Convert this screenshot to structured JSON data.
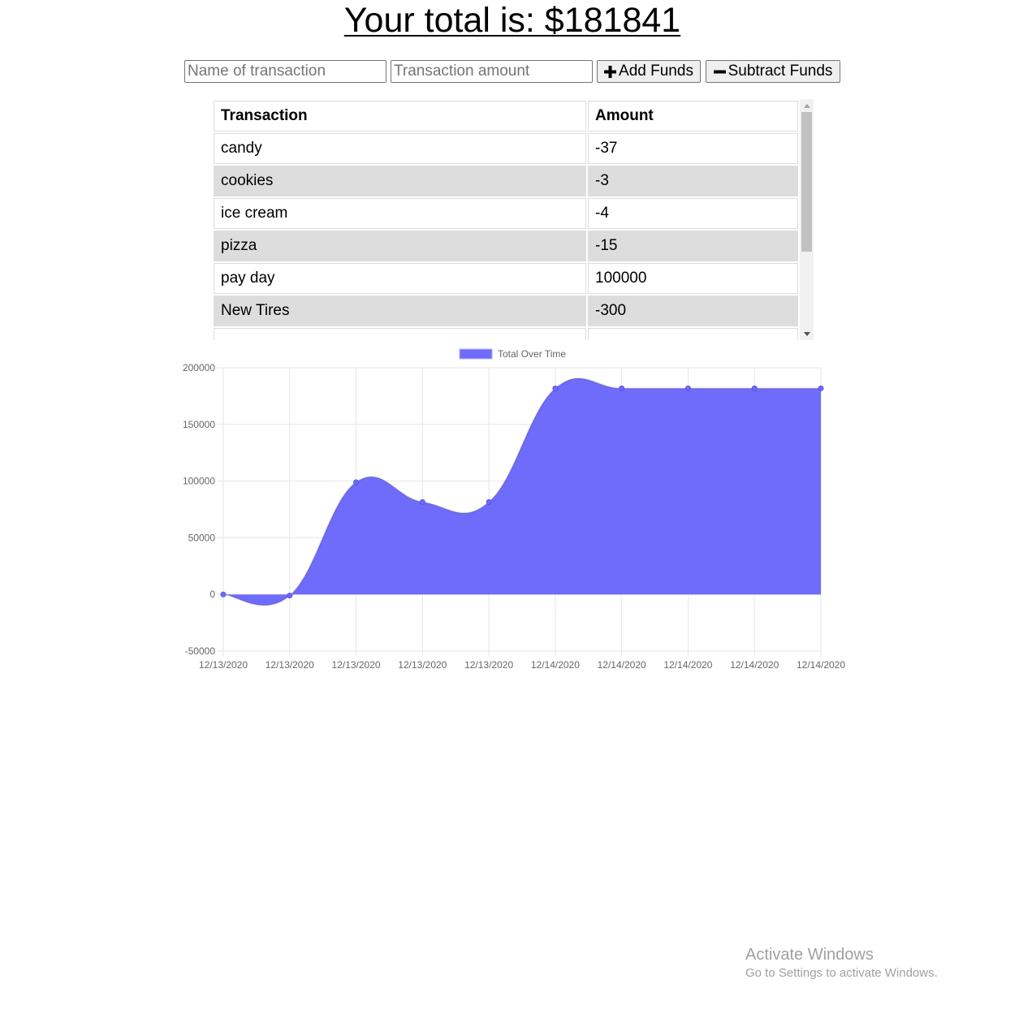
{
  "header": {
    "total_text": "Your total is: $181841"
  },
  "form": {
    "name_placeholder": "Name of transaction",
    "amount_placeholder": "Transaction amount",
    "add_label": "Add Funds",
    "subtract_label": "Subtract Funds",
    "add_icon": "plus-icon",
    "subtract_icon": "minus-icon"
  },
  "table": {
    "headers": [
      "Transaction",
      "Amount"
    ],
    "rows": [
      {
        "name": "candy",
        "amount": "-37"
      },
      {
        "name": "cookies",
        "amount": "-3"
      },
      {
        "name": "ice cream",
        "amount": "-4"
      },
      {
        "name": "pizza",
        "amount": "-15"
      },
      {
        "name": "pay day",
        "amount": "100000"
      },
      {
        "name": "New Tires",
        "amount": "-300"
      }
    ],
    "alt_row_color": "#dddddd"
  },
  "chart_data": {
    "type": "area",
    "legend": "Total Over Time",
    "legend_position": "top",
    "x": [
      "12/13/2020",
      "12/13/2020",
      "12/13/2020",
      "12/13/2020",
      "12/13/2020",
      "12/14/2020",
      "12/14/2020",
      "12/14/2020",
      "12/14/2020",
      "12/14/2020"
    ],
    "series": [
      {
        "name": "Total Over Time",
        "values": [
          0,
          -1000,
          99000,
          81500,
          81500,
          181800,
          181800,
          181800,
          181800,
          181841
        ],
        "color": "#6f6cfb"
      }
    ],
    "ylim": [
      -50000,
      200000
    ],
    "yticks": [
      200000,
      150000,
      100000,
      50000,
      0,
      -50000
    ],
    "grid": true
  },
  "watermark": {
    "title": "Activate Windows",
    "subtitle": "Go to Settings to activate Windows."
  }
}
